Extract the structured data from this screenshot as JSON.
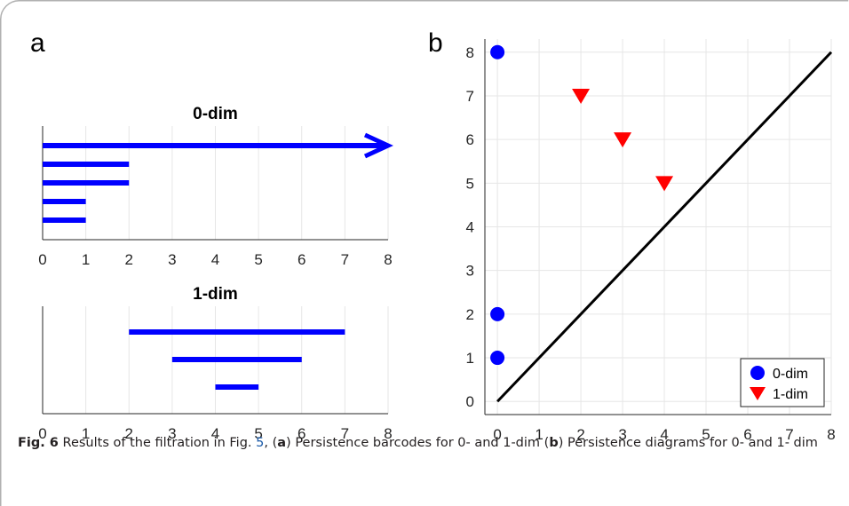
{
  "panels": {
    "a_label": "a",
    "b_label": "b"
  },
  "caption": {
    "fig": "Fig. 6",
    "t1": " Results of the filtration in Fig. ",
    "link": "5",
    "t2": ", (",
    "a": "a",
    "t3": ") Persistence barcodes for 0- and 1-dim (",
    "b": "b",
    "t4": ") Persistence diagrams for 0- and 1- dim"
  },
  "colors": {
    "bar": "#0000ff",
    "triangle": "#ff0000",
    "diagonal": "#000000",
    "grid": "#e6e6e6"
  },
  "chart_data": [
    {
      "type": "barcode",
      "title": "0-dim",
      "xlim": [
        0,
        8
      ],
      "xticks": [
        "0",
        "1",
        "2",
        "3",
        "4",
        "5",
        "6",
        "7",
        "8"
      ],
      "grid": true,
      "bars": [
        {
          "birth": 0,
          "death": 8,
          "infinite": true
        },
        {
          "birth": 0,
          "death": 2
        },
        {
          "birth": 0,
          "death": 2
        },
        {
          "birth": 0,
          "death": 1
        },
        {
          "birth": 0,
          "death": 1
        }
      ]
    },
    {
      "type": "barcode",
      "title": "1-dim",
      "xlim": [
        0,
        8
      ],
      "xticks": [
        "0",
        "1",
        "2",
        "3",
        "4",
        "5",
        "6",
        "7",
        "8"
      ],
      "grid": true,
      "bars": [
        {
          "birth": 2,
          "death": 7
        },
        {
          "birth": 3,
          "death": 6
        },
        {
          "birth": 4,
          "death": 5
        }
      ]
    },
    {
      "type": "scatter",
      "title": "",
      "xlim": [
        -0.3,
        8
      ],
      "ylim": [
        -0.3,
        8.3
      ],
      "xticks": [
        "0",
        "1",
        "2",
        "3",
        "4",
        "5",
        "6",
        "7",
        "8"
      ],
      "yticks": [
        "0",
        "1",
        "2",
        "3",
        "4",
        "5",
        "6",
        "7",
        "8"
      ],
      "grid": true,
      "diagonal": [
        0,
        8
      ],
      "legend_position": "bottom-right",
      "series": [
        {
          "name": "0-dim",
          "marker": "circle",
          "x": [
            0,
            0,
            0
          ],
          "y": [
            8,
            2,
            1
          ]
        },
        {
          "name": "1-dim",
          "marker": "triangle-down",
          "x": [
            2,
            3,
            4
          ],
          "y": [
            7,
            6,
            5
          ]
        }
      ]
    }
  ]
}
